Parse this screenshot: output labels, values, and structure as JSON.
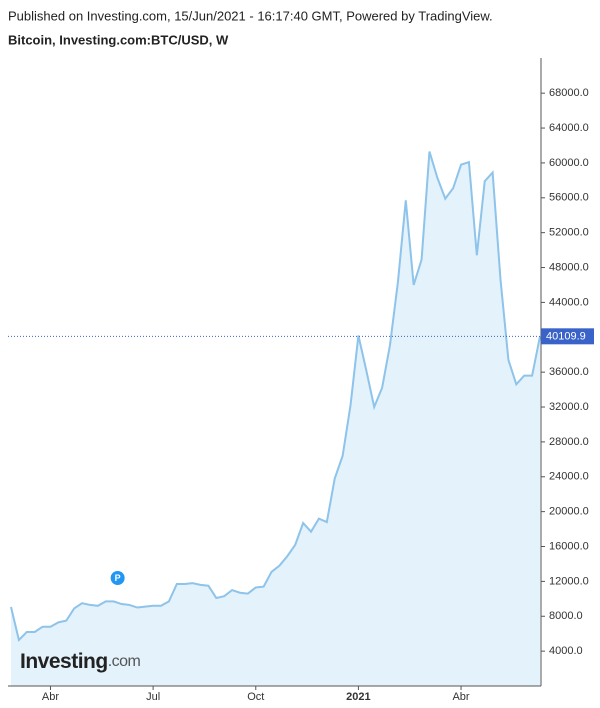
{
  "header": {
    "published": "Published on Investing.com, 15/Jun/2021 - 16:17:40 GMT, Powered by TradingView.",
    "symbol": "Bitcoin, Investing.com:BTC/USD, W"
  },
  "logo": {
    "brand": "Investing",
    "suffix": ".com"
  },
  "chart_data": {
    "type": "area",
    "categories": [
      null,
      null,
      null,
      null,
      null,
      "Abr",
      null,
      null,
      null,
      null,
      null,
      null,
      null,
      null,
      null,
      null,
      null,
      null,
      "Jul",
      null,
      null,
      null,
      null,
      null,
      null,
      null,
      null,
      null,
      null,
      null,
      null,
      "Oct",
      null,
      null,
      null,
      null,
      null,
      null,
      null,
      null,
      null,
      null,
      null,
      null,
      "2021",
      null,
      null,
      null,
      null,
      null,
      null,
      null,
      null,
      null,
      null,
      null,
      null,
      "Abr",
      null,
      null,
      null,
      null,
      null,
      null,
      null,
      null,
      null,
      null
    ],
    "series": [
      {
        "name": "BTC/USD",
        "color": "#8ec3ea",
        "values": [
          9060,
          5280,
          6200,
          6200,
          6800,
          6800,
          7300,
          7500,
          8900,
          9500,
          9300,
          9200,
          9700,
          9700,
          9400,
          9300,
          9000,
          9100,
          9200,
          9200,
          9700,
          11700,
          11700,
          11800,
          11600,
          11500,
          10100,
          10300,
          11000,
          10700,
          10600,
          11300,
          11400,
          13100,
          13800,
          14900,
          16200,
          18700,
          17700,
          19200,
          18800,
          23800,
          26400,
          32200,
          40200,
          36200,
          32000,
          34200,
          39100,
          46300,
          55700,
          46000,
          48900,
          61300,
          58300,
          55900,
          57100,
          59800,
          60100,
          49400,
          57900,
          58900,
          46600,
          37400,
          34600,
          35600,
          35600,
          40109.9
        ]
      }
    ],
    "fill_color": "#e3f2fb",
    "current_price": 40109.9,
    "current_price_color": "#3a63c9",
    "annotation": {
      "label": "P",
      "index": 13,
      "color": "#2196f3"
    },
    "ylim": [
      0,
      72000
    ],
    "yticks": [
      {
        "value": 4000,
        "label": "4000.0"
      },
      {
        "value": 8000,
        "label": "8000.0"
      },
      {
        "value": 12000,
        "label": "12000.0"
      },
      {
        "value": 16000,
        "label": "16000.0"
      },
      {
        "value": 20000,
        "label": "20000.0"
      },
      {
        "value": 24000,
        "label": "24000.0"
      },
      {
        "value": 28000,
        "label": "28000.0"
      },
      {
        "value": 32000,
        "label": "32000.0"
      },
      {
        "value": 36000,
        "label": "36000.0"
      },
      {
        "value": 40000,
        "label": "40000.0"
      },
      {
        "value": 44000,
        "label": "44000.0"
      },
      {
        "value": 48000,
        "label": "48000.0"
      },
      {
        "value": 52000,
        "label": "52000.0"
      },
      {
        "value": 56000,
        "label": "56000.0"
      },
      {
        "value": 60000,
        "label": "60000.0"
      },
      {
        "value": 64000,
        "label": "64000.0"
      },
      {
        "value": 68000,
        "label": "68000.0"
      }
    ],
    "grid": false
  }
}
